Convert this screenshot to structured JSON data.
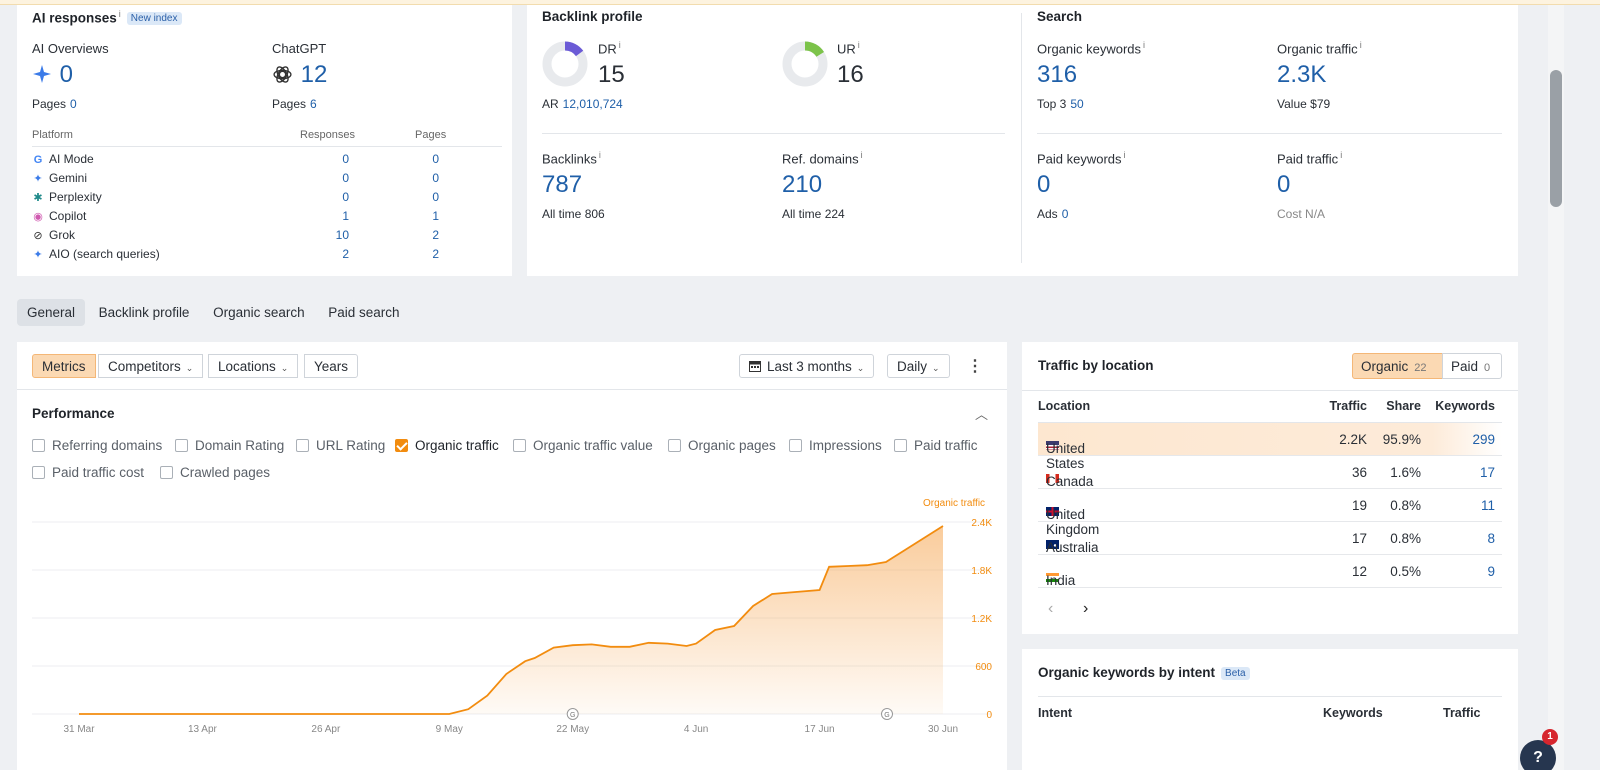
{
  "ai_responses": {
    "title": "AI responses",
    "info": "i",
    "badge": "New index",
    "overviews": {
      "label": "AI Overviews",
      "value": "0",
      "pages_label": "Pages",
      "pages": "0"
    },
    "chatgpt": {
      "label": "ChatGPT",
      "value": "12",
      "pages_label": "Pages",
      "pages": "6"
    },
    "table": {
      "headers": [
        "Platform",
        "Responses",
        "Pages"
      ],
      "rows": [
        {
          "name": "AI Mode",
          "responses": "0",
          "pages": "0",
          "icon": "google-icon"
        },
        {
          "name": "Gemini",
          "responses": "0",
          "pages": "0",
          "icon": "gemini-icon"
        },
        {
          "name": "Perplexity",
          "responses": "0",
          "pages": "0",
          "icon": "perplexity-icon"
        },
        {
          "name": "Copilot",
          "responses": "1",
          "pages": "1",
          "icon": "copilot-icon"
        },
        {
          "name": "Grok",
          "responses": "10",
          "pages": "2",
          "icon": "grok-icon"
        },
        {
          "name": "AIO (search queries)",
          "responses": "2",
          "pages": "2",
          "icon": "sparkle-icon"
        }
      ]
    }
  },
  "backlink_profile": {
    "title": "Backlink profile",
    "dr": {
      "label": "DR",
      "value": "15",
      "ratio": 0.15,
      "color": "#6b5bd6"
    },
    "ur": {
      "label": "UR",
      "value": "16",
      "ratio": 0.16,
      "color": "#7cc34a"
    },
    "ar_label": "AR",
    "ar_value": "12,010,724",
    "backlinks": {
      "label": "Backlinks",
      "value": "787",
      "sub_label": "All time",
      "sub_value": "806"
    },
    "ref_domains": {
      "label": "Ref. domains",
      "value": "210",
      "sub_label": "All time",
      "sub_value": "224"
    }
  },
  "search": {
    "title": "Search",
    "organic_keywords": {
      "label": "Organic keywords",
      "value": "316",
      "sub_label": "Top 3",
      "sub_value": "50"
    },
    "organic_traffic": {
      "label": "Organic traffic",
      "value": "2.3K",
      "sub_label": "Value",
      "sub_value": "$79"
    },
    "paid_keywords": {
      "label": "Paid keywords",
      "value": "0",
      "sub_label": "Ads",
      "sub_value": "0"
    },
    "paid_traffic": {
      "label": "Paid traffic",
      "value": "0",
      "sub_label": "Cost",
      "sub_value": "N/A"
    }
  },
  "tabs": [
    "General",
    "Backlink profile",
    "Organic search",
    "Paid search"
  ],
  "toolbar": {
    "metrics": "Metrics",
    "competitors": "Competitors",
    "locations": "Locations",
    "years": "Years",
    "range": "Last 3 months",
    "interval": "Daily"
  },
  "performance": {
    "title": "Performance",
    "checkboxes": [
      {
        "label": "Referring domains",
        "checked": false
      },
      {
        "label": "Domain Rating",
        "checked": false
      },
      {
        "label": "URL Rating",
        "checked": false
      },
      {
        "label": "Organic traffic",
        "checked": true
      },
      {
        "label": "Organic traffic value",
        "checked": false
      },
      {
        "label": "Organic pages",
        "checked": false
      },
      {
        "label": "Impressions",
        "checked": false
      },
      {
        "label": "Paid traffic",
        "checked": false
      },
      {
        "label": "Paid traffic cost",
        "checked": false
      },
      {
        "label": "Crawled pages",
        "checked": false
      }
    ]
  },
  "chart_data": {
    "type": "area",
    "series": [
      {
        "name": "Organic traffic",
        "color": "#f28c0f",
        "x": [
          "2025-03-31",
          "2025-04-13",
          "2025-04-26",
          "2025-05-09",
          "2025-05-11",
          "2025-05-13",
          "2025-05-15",
          "2025-05-17",
          "2025-05-18",
          "2025-05-20",
          "2025-05-22",
          "2025-05-24",
          "2025-05-26",
          "2025-05-28",
          "2025-05-30",
          "2025-06-01",
          "2025-06-03",
          "2025-06-04",
          "2025-06-06",
          "2025-06-08",
          "2025-06-10",
          "2025-06-12",
          "2025-06-14",
          "2025-06-17",
          "2025-06-18",
          "2025-06-20",
          "2025-06-22",
          "2025-06-24",
          "2025-06-26",
          "2025-06-28",
          "2025-06-30"
        ],
        "values": [
          0,
          0,
          0,
          0,
          60,
          230,
          500,
          660,
          700,
          830,
          860,
          870,
          840,
          840,
          890,
          880,
          850,
          880,
          1050,
          1100,
          1350,
          1500,
          1520,
          1550,
          1840,
          1850,
          1860,
          1900,
          2050,
          2200,
          2350
        ]
      }
    ],
    "x_ticks": [
      "31 Mar",
      "13 Apr",
      "26 Apr",
      "9 May",
      "22 May",
      "4 Jun",
      "17 Jun",
      "30 Jun"
    ],
    "y_ticks": [
      "0",
      "600",
      "1.2K",
      "1.8K",
      "2.4K"
    ],
    "ylim": [
      0,
      2400
    ],
    "legend": "Organic traffic",
    "grid": true,
    "annotation_markers": [
      "G",
      "G"
    ]
  },
  "traffic_by_location": {
    "title": "Traffic by location",
    "organic_label": "Organic",
    "organic_count": "22",
    "paid_label": "Paid",
    "paid_count": "0",
    "headers": [
      "Location",
      "Traffic",
      "Share",
      "Keywords"
    ],
    "rows": [
      {
        "country": "United States",
        "traffic": "2.2K",
        "share": "95.9%",
        "keywords": "299",
        "flag": "us-flag"
      },
      {
        "country": "Canada",
        "traffic": "36",
        "share": "1.6%",
        "keywords": "17",
        "flag": "ca-flag"
      },
      {
        "country": "United Kingdom",
        "traffic": "19",
        "share": "0.8%",
        "keywords": "11",
        "flag": "uk-flag"
      },
      {
        "country": "Australia",
        "traffic": "17",
        "share": "0.8%",
        "keywords": "8",
        "flag": "au-flag"
      },
      {
        "country": "India",
        "traffic": "12",
        "share": "0.5%",
        "keywords": "9",
        "flag": "in-flag"
      }
    ]
  },
  "keywords_by_intent": {
    "title": "Organic keywords by intent",
    "badge": "Beta",
    "headers": [
      "Intent",
      "Keywords",
      "Traffic"
    ]
  },
  "help_badge": {
    "count": "1",
    "glyph": "?"
  }
}
